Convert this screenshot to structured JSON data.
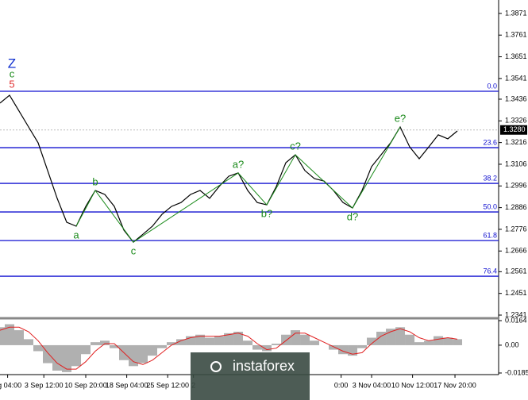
{
  "chart_data": {
    "type": "line",
    "color": "#000000",
    "xlim": [
      0,
      52.33
    ],
    "ylim": [
      1.2329,
      1.3939
    ],
    "yticks": [
      1.3871,
      1.3761,
      1.3651,
      1.3541,
      1.3436,
      1.3326,
      1.3216,
      1.3106,
      1.2996,
      1.2886,
      1.2776,
      1.2666,
      1.2561,
      1.2451,
      1.2341
    ],
    "xticks": [
      {
        "value": 0.8,
        "label": "ug 04:00"
      },
      {
        "value": 4.6,
        "label": "3 Sep 12:00"
      },
      {
        "value": 9,
        "label": "10 Sep 20:00"
      },
      {
        "value": 13.3,
        "label": "18 Sep 04:00"
      },
      {
        "value": 17.6,
        "label": "25 Sep 12:00"
      },
      {
        "value": 20.3,
        "label": "2"
      },
      {
        "value": 35.8,
        "label": "0:00"
      },
      {
        "value": 39,
        "label": "3 Nov 04:00"
      },
      {
        "value": 43.3,
        "label": "10 Nov 12:00"
      },
      {
        "value": 47.75,
        "label": "17 Nov 20:00"
      }
    ],
    "x": [
      0,
      1,
      2,
      3,
      4,
      5,
      6,
      7,
      8,
      9,
      10,
      11,
      12,
      13,
      14,
      15,
      16,
      17,
      18,
      19,
      20,
      21,
      22,
      23,
      24,
      25,
      26,
      27,
      28,
      29,
      30,
      31,
      32,
      33,
      34,
      35,
      36,
      37,
      38,
      39,
      40,
      41,
      42,
      43,
      44,
      45,
      46,
      47,
      48
    ],
    "values": [
      1.3416,
      1.3456,
      1.3376,
      1.3295,
      1.3215,
      1.3074,
      1.2933,
      1.2812,
      1.2792,
      1.2892,
      1.2973,
      1.2953,
      1.2892,
      1.2772,
      1.2711,
      1.2751,
      1.2792,
      1.2852,
      1.2892,
      1.2912,
      1.2953,
      1.2973,
      1.2933,
      1.2993,
      1.3045,
      1.3062,
      1.2973,
      1.2912,
      1.29,
      1.2993,
      1.3114,
      1.3154,
      1.3074,
      1.3033,
      1.3021,
      1.2973,
      1.2912,
      1.2884,
      1.2973,
      1.3094,
      1.3154,
      1.3215,
      1.3295,
      1.3194,
      1.3134,
      1.3194,
      1.3255,
      1.3235,
      1.3275
    ],
    "current_price": {
      "value": 1.328,
      "label": "1.3280"
    },
    "fib_levels": [
      {
        "label": "0.0",
        "price": 1.3476
      },
      {
        "label": "23.6",
        "price": 1.319
      },
      {
        "label": "38.2",
        "price": 1.3009
      },
      {
        "label": "50.0",
        "price": 1.2864
      },
      {
        "label": "61.8",
        "price": 1.2719
      },
      {
        "label": "76.4",
        "price": 1.2538
      }
    ],
    "waves": [
      {
        "labels": [
          "5",
          "c",
          "Z"
        ],
        "colors": [
          "#e03030",
          "#1a8a1a",
          "#1030d0"
        ],
        "x": 1.25,
        "price": 1.3468
      },
      {
        "labels": [
          "a"
        ],
        "colors": [
          "#1a8a1a"
        ],
        "x": 8,
        "price": 1.2792
      },
      {
        "labels": [
          "b"
        ],
        "colors": [
          "#1a8a1a"
        ],
        "x": 10,
        "price": 1.2973
      },
      {
        "labels": [
          "c"
        ],
        "colors": [
          "#1a8a1a"
        ],
        "x": 14,
        "price": 1.2711
      },
      {
        "labels": [
          "a?"
        ],
        "colors": [
          "#1a8a1a"
        ],
        "x": 25,
        "price": 1.3062
      },
      {
        "labels": [
          "b?"
        ],
        "colors": [
          "#1a8a1a"
        ],
        "x": 28,
        "price": 1.29
      },
      {
        "labels": [
          "c?"
        ],
        "colors": [
          "#1a8a1a"
        ],
        "x": 31,
        "price": 1.3154
      },
      {
        "labels": [
          "d?"
        ],
        "colors": [
          "#1a8a1a"
        ],
        "x": 37,
        "price": 1.2884
      },
      {
        "labels": [
          "e?"
        ],
        "colors": [
          "#1a8a1a"
        ],
        "x": 42,
        "price": 1.3295
      }
    ],
    "oscillator": {
      "ylim": [
        -0.0186,
        0.0164
      ],
      "yticks": [
        0.0164,
        {
          "value": 0,
          "label": "0.00"
        },
        -0.01859
      ],
      "histogram": [
        0.012,
        0.014,
        0.01,
        0.004,
        -0.004,
        -0.012,
        -0.017,
        -0.018,
        -0.014,
        -0.006,
        0.002,
        0.003,
        -0.002,
        -0.01,
        -0.014,
        -0.012,
        -0.007,
        -0.002,
        0.002,
        0.004,
        0.006,
        0.007,
        0.005,
        0.006,
        0.008,
        0.009,
        0.003,
        -0.003,
        -0.004,
        0.001,
        0.007,
        0.01,
        0.007,
        0.003,
        0.0,
        -0.003,
        -0.006,
        -0.007,
        -0.002,
        0.005,
        0.009,
        0.011,
        0.012,
        0.007,
        0.002,
        0.003,
        0.006,
        0.005,
        0.004
      ],
      "signal": [
        0.01,
        0.012,
        0.012,
        0.009,
        0.003,
        -0.005,
        -0.012,
        -0.016,
        -0.016,
        -0.011,
        -0.004,
        0.001,
        0.001,
        -0.005,
        -0.011,
        -0.013,
        -0.01,
        -0.005,
        0.0,
        0.003,
        0.005,
        0.006,
        0.006,
        0.006,
        0.007,
        0.008,
        0.006,
        0.001,
        -0.003,
        -0.002,
        0.003,
        0.008,
        0.008,
        0.005,
        0.002,
        -0.001,
        -0.004,
        -0.006,
        -0.005,
        0.001,
        0.006,
        0.009,
        0.011,
        0.009,
        0.005,
        0.003,
        0.004,
        0.005,
        0.004
      ],
      "hist_color": "#b0b0b0",
      "signal_color": "#e02020"
    },
    "watermark": "instaforex"
  }
}
